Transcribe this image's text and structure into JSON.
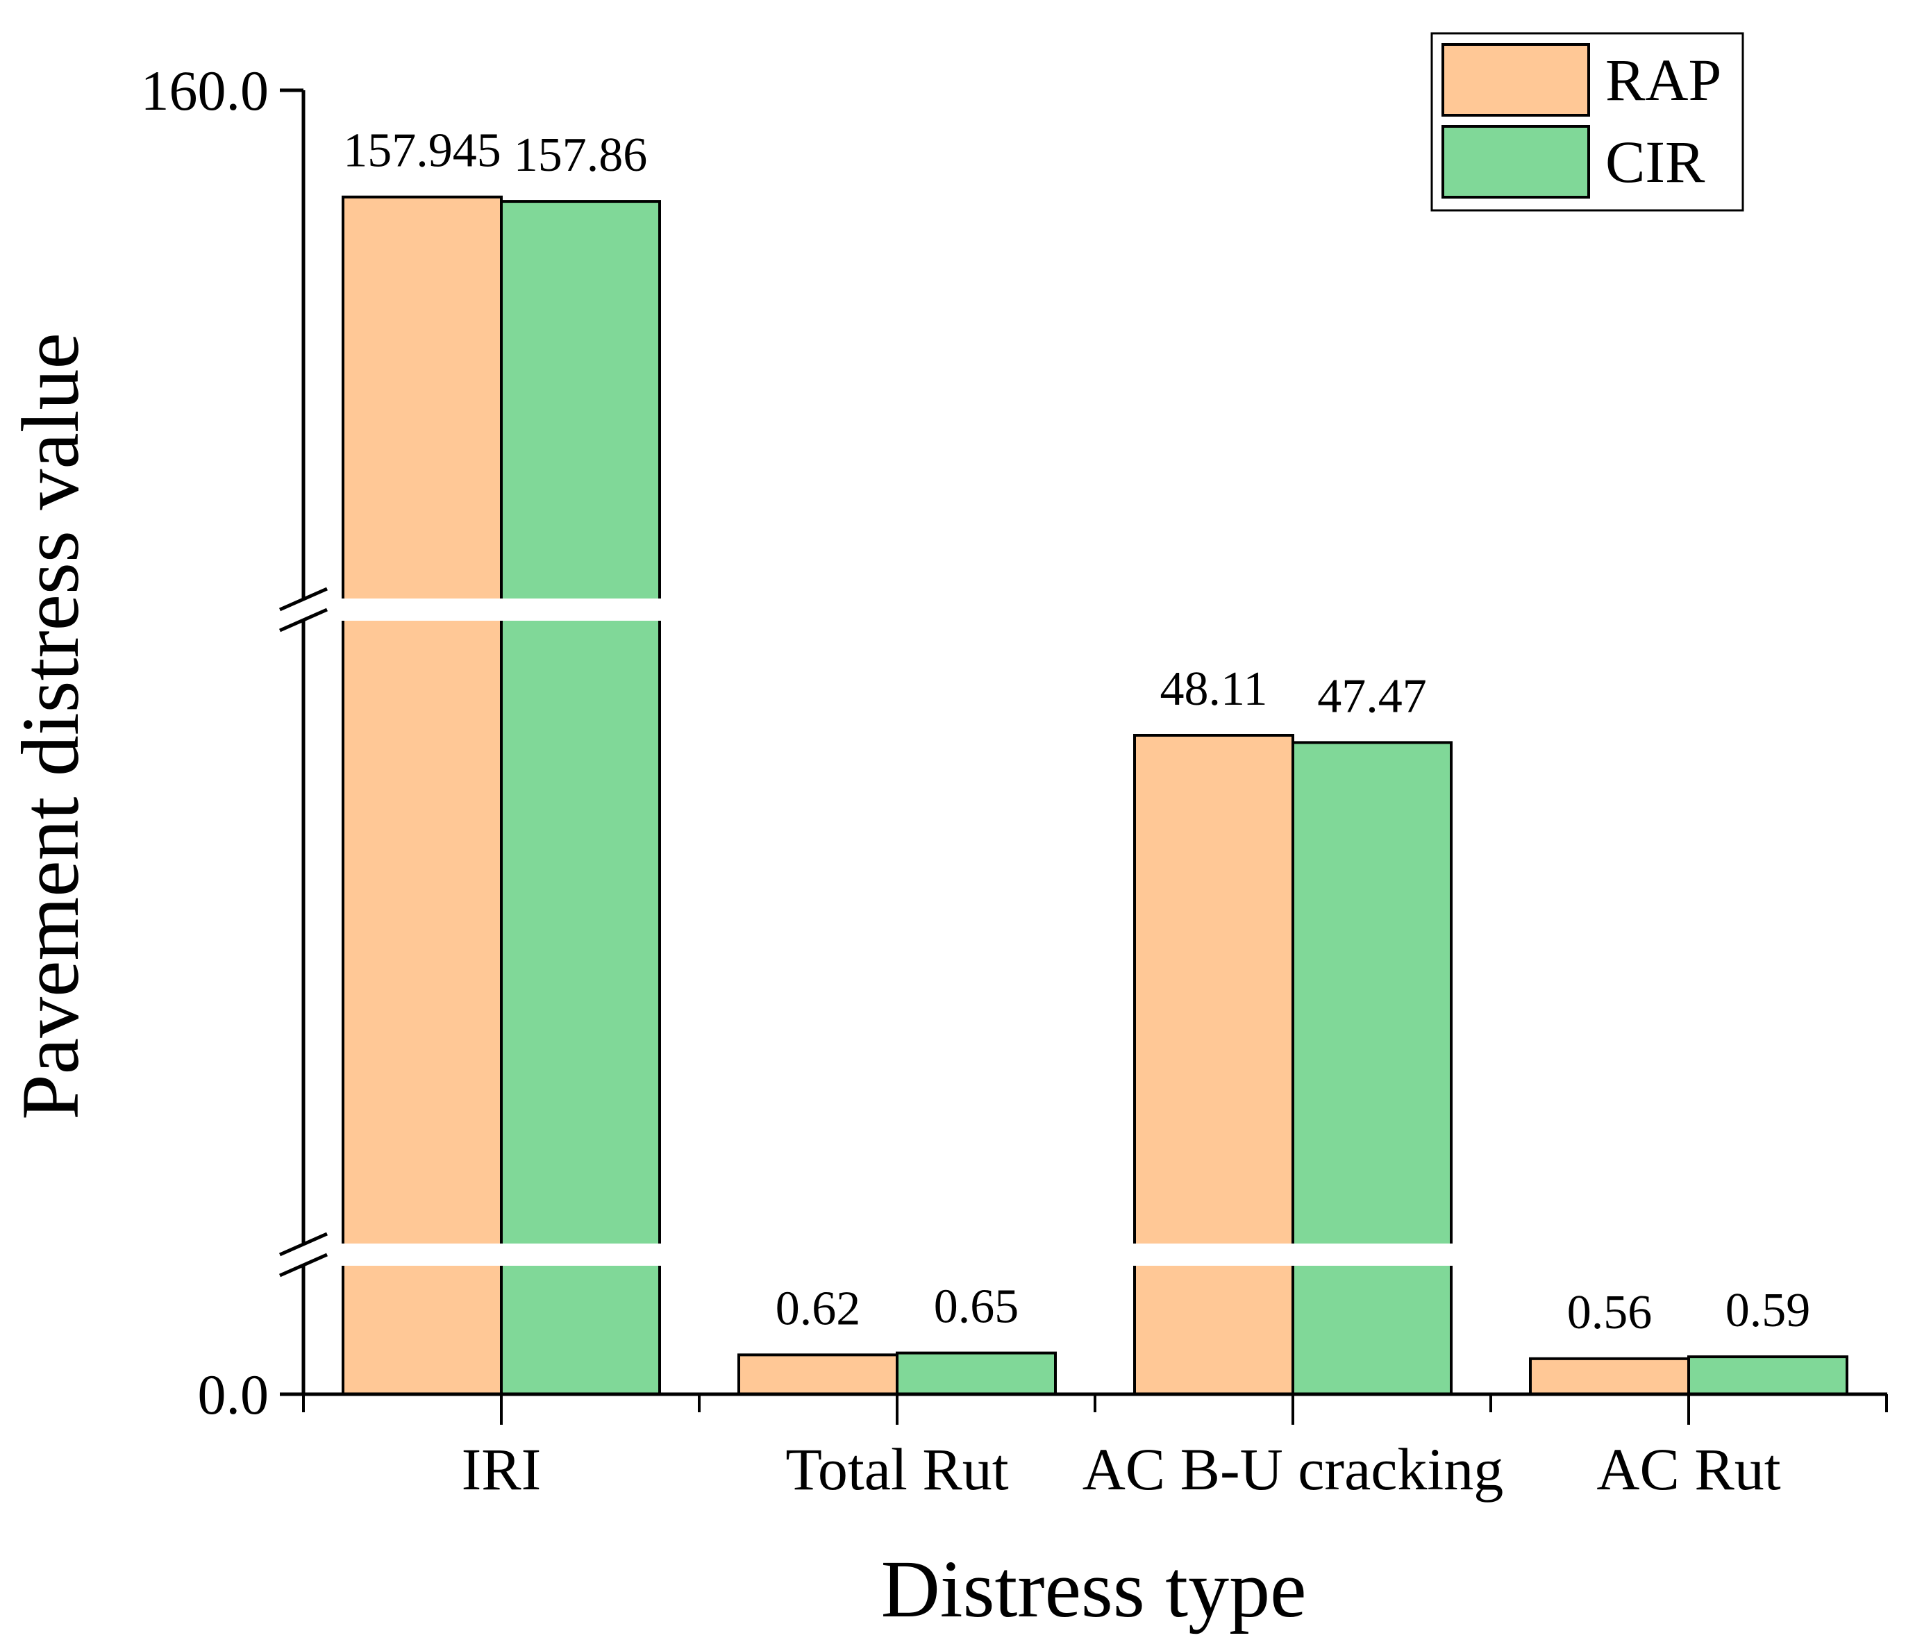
{
  "chart_data": {
    "type": "bar",
    "title": "",
    "xlabel": "Distress type",
    "ylabel": "Pavement distress value",
    "categories": [
      "IRI",
      "Total Rut",
      "AC B-U cracking",
      "AC Rut"
    ],
    "series": [
      {
        "name": "RAP",
        "color": "#FFC896",
        "values": [
          157.945,
          0.62,
          48.11,
          0.56
        ],
        "labels": [
          "157.945",
          "0.62",
          "48.11",
          "0.56"
        ]
      },
      {
        "name": "CIR",
        "color": "#80D898",
        "values": [
          157.86,
          0.65,
          47.47,
          0.59
        ],
        "labels": [
          "157.86",
          "0.65",
          "47.47",
          "0.59"
        ]
      }
    ],
    "yticks": [
      "0.0",
      "160.0"
    ],
    "ylim": [
      0,
      160
    ],
    "broken_axis": true,
    "legend": "top-right",
    "grid": false
  }
}
